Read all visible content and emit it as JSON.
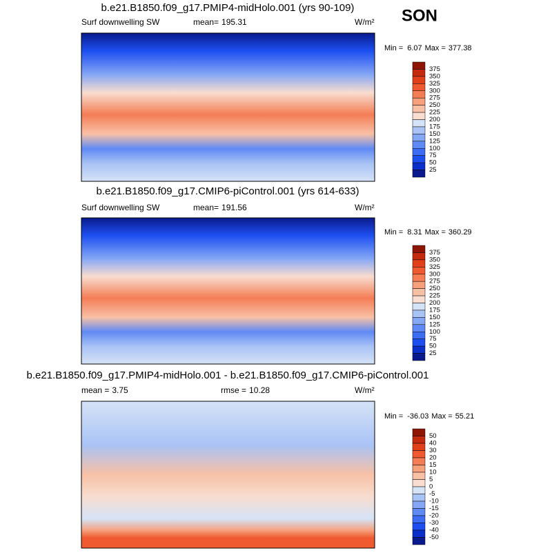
{
  "figure_title": "SON",
  "panels": [
    {
      "title": "b.e21.B1850.f09_g17.PMIP4-midHolo.001 (yrs 90-109)",
      "field": "Surf downwelling SW",
      "stats": [
        {
          "label": "mean=",
          "value": 195.31
        }
      ],
      "units": "W/m²",
      "min_label": "Min =",
      "min": 6.07,
      "max_label": "Max =",
      "max": 377.38,
      "colorbar": {
        "labels": [
          375,
          350,
          325,
          300,
          275,
          250,
          225,
          200,
          175,
          150,
          125,
          100,
          75,
          50,
          25
        ],
        "colors": [
          "#8e1404",
          "#c42a0e",
          "#e0401a",
          "#ef5a30",
          "#f47d55",
          "#f6a07c",
          "#f8c1a6",
          "#f8ddd0",
          "#d5e3f7",
          "#a9c3f5",
          "#85a7f5",
          "#5f8af5",
          "#3d6cf5",
          "#1d4ff0",
          "#0b2fc9",
          "#0a1a8c"
        ]
      }
    },
    {
      "title": "b.e21.B1850.f09_g17.CMIP6-piControl.001 (yrs 614-633)",
      "field": "Surf downwelling SW",
      "stats": [
        {
          "label": "mean=",
          "value": 191.56
        }
      ],
      "units": "W/m²",
      "min_label": "Min =",
      "min": 8.31,
      "max_label": "Max =",
      "max": 360.29,
      "colorbar": {
        "labels": [
          375,
          350,
          325,
          300,
          275,
          250,
          225,
          200,
          175,
          150,
          125,
          100,
          75,
          50,
          25
        ],
        "colors": [
          "#8e1404",
          "#c42a0e",
          "#e0401a",
          "#ef5a30",
          "#f47d55",
          "#f6a07c",
          "#f8c1a6",
          "#f8ddd0",
          "#d5e3f7",
          "#a9c3f5",
          "#85a7f5",
          "#5f8af5",
          "#3d6cf5",
          "#1d4ff0",
          "#0b2fc9",
          "#0a1a8c"
        ]
      }
    },
    {
      "title": "b.e21.B1850.f09_g17.PMIP4-midHolo.001 - b.e21.B1850.f09_g17.CMIP6-piControl.001",
      "stats": [
        {
          "label": "mean =",
          "value": 3.75
        },
        {
          "label": "rmse =",
          "value": 10.28
        }
      ],
      "units": "W/m²",
      "min_label": "Min =",
      "min": -36.03,
      "max_label": "Max =",
      "max": 55.21,
      "colorbar": {
        "labels": [
          50,
          40,
          30,
          20,
          15,
          10,
          5,
          0,
          -5,
          -10,
          -15,
          -20,
          -30,
          -40,
          -50
        ],
        "colors": [
          "#8e1404",
          "#c42a0e",
          "#e0401a",
          "#ef5a30",
          "#f47d55",
          "#f6a07c",
          "#f8c1a6",
          "#f8ddd0",
          "#d5e3f7",
          "#a9c3f5",
          "#85a7f5",
          "#5f8af5",
          "#3d6cf5",
          "#1d4ff0",
          "#0b2fc9",
          "#0a1a8c"
        ]
      }
    }
  ]
}
